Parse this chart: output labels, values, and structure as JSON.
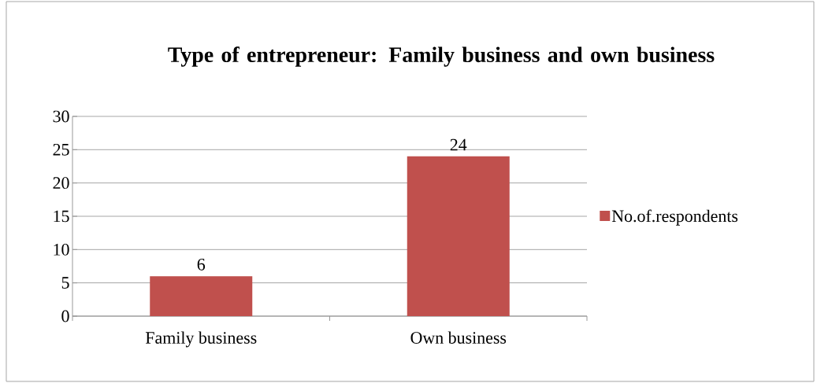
{
  "chart_data": {
    "type": "bar",
    "title": "Type of entrepreneur: Family business and own business",
    "categories": [
      "Family business",
      "Own business"
    ],
    "series": [
      {
        "name": "No.of.respondents",
        "color": "#c0504d",
        "values": [
          6,
          24
        ]
      }
    ],
    "ylim": [
      0,
      30
    ],
    "yticks": [
      0,
      5,
      10,
      15,
      20,
      25,
      30
    ],
    "grid": "y",
    "legend": "right",
    "data_labels": true
  }
}
